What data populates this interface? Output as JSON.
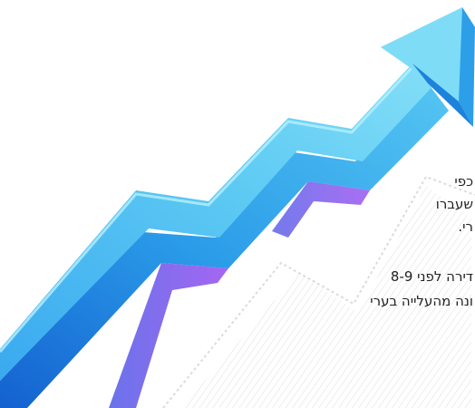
{
  "paragraph_1": {
    "line_1": "כפי",
    "line_2": "שעברו",
    "line_3": "רי."
  },
  "paragraph_2": {
    "line_1": "דירה לפני 8-9",
    "line_2": "ונה מהעלייה בערי"
  },
  "colors": {
    "arrow_light": "#6fd9f5",
    "arrow_mid": "#2cb0ee",
    "arrow_dark": "#1572d6",
    "arrow_purple": "#8a4cf0",
    "arrow_shadow_lines": "#d4d4d4"
  }
}
